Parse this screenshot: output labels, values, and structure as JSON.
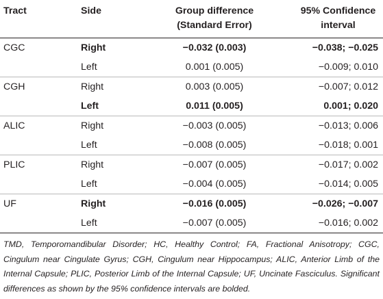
{
  "headers": {
    "tract": "Tract",
    "side": "Side",
    "group_difference_line1": "Group difference",
    "group_difference_line2": "(Standard Error)",
    "ci_line1": "95% Confidence",
    "ci_line2": "interval"
  },
  "rows": [
    {
      "tract": "CGC",
      "side": "Right",
      "difference": "−0.032 (0.003)",
      "ci": "−0.038; −0.025",
      "significant": true
    },
    {
      "tract": "",
      "side": "Left",
      "difference": "0.001 (0.005)",
      "ci": "−0.009; 0.010",
      "significant": false
    },
    {
      "tract": "CGH",
      "side": "Right",
      "difference": "0.003 (0.005)",
      "ci": "−0.007; 0.012",
      "significant": false
    },
    {
      "tract": "",
      "side": "Left",
      "difference": "0.011 (0.005)",
      "ci": "0.001; 0.020",
      "significant": true
    },
    {
      "tract": "ALIC",
      "side": "Right",
      "difference": "−0.003 (0.005)",
      "ci": "−0.013; 0.006",
      "significant": false
    },
    {
      "tract": "",
      "side": "Left",
      "difference": "−0.008 (0.005)",
      "ci": "−0.018; 0.001",
      "significant": false
    },
    {
      "tract": "PLIC",
      "side": "Right",
      "difference": "−0.007 (0.005)",
      "ci": "−0.017; 0.002",
      "significant": false
    },
    {
      "tract": "",
      "side": "Left",
      "difference": "−0.004 (0.005)",
      "ci": "−0.014; 0.005",
      "significant": false
    },
    {
      "tract": "UF",
      "side": "Right",
      "difference": "−0.016 (0.005)",
      "ci": "−0.026; −0.007",
      "significant": true
    },
    {
      "tract": "",
      "side": "Left",
      "difference": "−0.007 (0.005)",
      "ci": "−0.016; 0.002",
      "significant": false
    }
  ],
  "footnote": "TMD, Temporomandibular Disorder; HC, Healthy Control; FA, Fractional Anisotropy; CGC, Cingulum near Cingulate Gyrus; CGH, Cingulum near Hippocampus; ALIC, Anterior Limb of the Internal Capsule; PLIC, Posterior Limb of the Internal Capsule; UF, Uncinate Fasciculus. Significant differences as shown by the 95% confidence intervals are bolded."
}
